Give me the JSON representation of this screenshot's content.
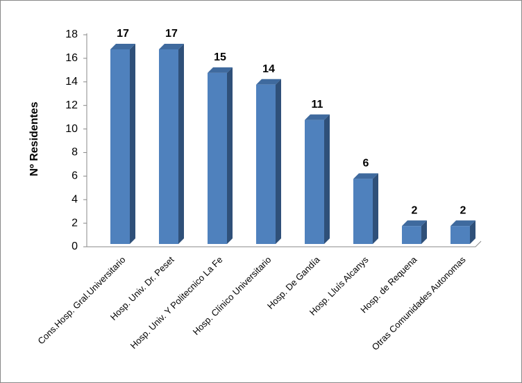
{
  "chart_data": {
    "type": "bar3d",
    "y_label": "Nº Residentes",
    "categories": [
      "Cons.Hosp. Gral.Universitario",
      "Hosp. Univ. Dr. Peset",
      "Hosp. Univ. Y Politecnico La Fe",
      "Hosp. Clínico Universitario",
      "Hosp. De Gandía",
      "Hosp. Lluís Alcanys",
      "Hosp. de Requena",
      "Otras Comunidades Autonomas"
    ],
    "values": [
      17,
      17,
      15,
      14,
      11,
      6,
      2,
      2
    ],
    "color": "#4f81bd",
    "ylim": [
      0,
      18
    ],
    "yticks": [
      0,
      2,
      4,
      6,
      8,
      10,
      12,
      14,
      16,
      18
    ]
  }
}
